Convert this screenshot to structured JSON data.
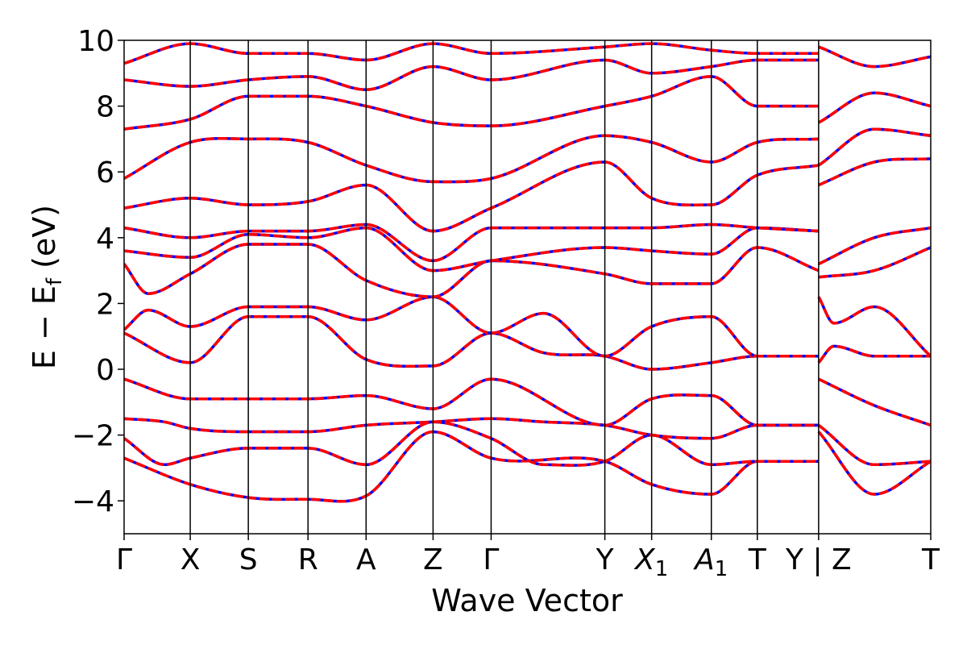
{
  "chart_data": {
    "type": "line",
    "title": "",
    "xlabel": "Wave Vector",
    "ylabel": "E − E",
    "ylabel_subscript": "f",
    "ylabel_unit": " (eV)",
    "ylim": [
      -5,
      10
    ],
    "y_ticks": [
      -4,
      -2,
      0,
      2,
      4,
      6,
      8,
      10
    ],
    "y_tick_labels": [
      "−4",
      "−2",
      "0",
      "2",
      "4",
      "6",
      "8",
      "10"
    ],
    "x_range": [
      0,
      1000
    ],
    "k_points": [
      {
        "label": "Γ",
        "sub": "",
        "italic": false,
        "x": 0
      },
      {
        "label": "X",
        "sub": "",
        "italic": false,
        "x": 82
      },
      {
        "label": "S",
        "sub": "",
        "italic": false,
        "x": 154
      },
      {
        "label": "R",
        "sub": "",
        "italic": false,
        "x": 228
      },
      {
        "label": "A",
        "sub": "",
        "italic": false,
        "x": 300
      },
      {
        "label": "Z",
        "sub": "",
        "italic": false,
        "x": 383
      },
      {
        "label": "Γ",
        "sub": "",
        "italic": false,
        "x": 455
      },
      {
        "label": "Y",
        "sub": "",
        "italic": false,
        "x": 596
      },
      {
        "label": "X",
        "sub": "1",
        "italic": true,
        "x": 654
      },
      {
        "label": "A",
        "sub": "1",
        "italic": true,
        "x": 728
      },
      {
        "label": "T",
        "sub": "",
        "italic": false,
        "x": 785
      },
      {
        "label": "Y | Z",
        "sub": "",
        "italic": false,
        "x": 861
      },
      {
        "label": "T",
        "sub": "",
        "italic": false,
        "x": 1000
      }
    ],
    "grid": false,
    "legend": "none",
    "series_styles": [
      {
        "color": "#0000ff",
        "style": "solid"
      },
      {
        "color": "#ff0000",
        "style": "dashed"
      }
    ],
    "bands": [
      {
        "x": [
          0,
          82,
          154,
          228,
          300,
          383,
          455,
          596,
          654,
          728,
          785,
          861
        ],
        "y": [
          -2.7,
          -3.5,
          -3.9,
          -3.95,
          -3.85,
          -1.9,
          -2.7,
          -2.8,
          -3.5,
          -3.8,
          -2.8,
          -2.8
        ]
      },
      {
        "x": [
          0,
          50,
          82,
          154,
          228,
          300,
          383,
          455,
          520,
          596,
          654,
          728,
          785,
          861
        ],
        "y": [
          -2.1,
          -2.9,
          -2.7,
          -2.4,
          -2.4,
          -2.9,
          -1.6,
          -2.1,
          -2.9,
          -2.8,
          -2.0,
          -2.9,
          -2.8,
          -2.8
        ]
      },
      {
        "x": [
          0,
          50,
          82,
          154,
          228,
          300,
          383,
          455,
          520,
          596,
          654,
          728,
          785,
          861
        ],
        "y": [
          -1.5,
          -1.6,
          -1.8,
          -1.9,
          -1.9,
          -1.7,
          -1.6,
          -1.5,
          -1.6,
          -1.7,
          -2.0,
          -2.1,
          -1.7,
          -1.7
        ]
      },
      {
        "x": [
          0,
          82,
          154,
          228,
          300,
          383,
          455,
          596,
          654,
          728,
          785,
          861
        ],
        "y": [
          -0.3,
          -0.9,
          -0.9,
          -0.9,
          -0.8,
          -1.2,
          -0.3,
          -1.7,
          -0.9,
          -0.8,
          -1.7,
          -1.7
        ]
      },
      {
        "x": [
          0,
          82,
          154,
          228,
          300,
          383,
          455,
          520,
          596,
          654,
          728,
          785,
          861
        ],
        "y": [
          1.1,
          0.2,
          1.6,
          1.6,
          0.3,
          0.1,
          1.1,
          0.5,
          0.4,
          0.0,
          0.2,
          0.4,
          0.4
        ]
      },
      {
        "x": [
          0,
          30,
          82,
          154,
          228,
          300,
          383,
          455,
          520,
          596,
          654,
          728,
          785,
          861
        ],
        "y": [
          1.2,
          1.8,
          1.3,
          1.9,
          1.9,
          1.5,
          2.2,
          1.1,
          1.7,
          0.4,
          1.3,
          1.6,
          0.4,
          0.4
        ]
      },
      {
        "x": [
          0,
          30,
          82,
          154,
          228,
          300,
          383,
          455,
          596,
          654,
          728,
          785,
          861
        ],
        "y": [
          3.2,
          2.3,
          2.9,
          3.8,
          3.8,
          2.7,
          2.2,
          3.3,
          2.9,
          2.6,
          2.6,
          3.7,
          3.0
        ]
      },
      {
        "x": [
          0,
          82,
          154,
          228,
          300,
          383,
          455,
          596,
          654,
          728,
          785,
          861
        ],
        "y": [
          3.6,
          3.4,
          4.1,
          4.0,
          4.3,
          3.0,
          3.3,
          3.7,
          3.6,
          3.5,
          4.3,
          4.2
        ]
      },
      {
        "x": [
          0,
          82,
          154,
          228,
          300,
          383,
          455,
          596,
          654,
          728,
          785,
          861
        ],
        "y": [
          4.3,
          4.0,
          4.2,
          4.2,
          4.4,
          3.3,
          4.3,
          4.3,
          4.3,
          4.4,
          4.3,
          4.2
        ]
      },
      {
        "x": [
          0,
          82,
          154,
          228,
          300,
          383,
          455,
          596,
          654,
          728,
          785,
          861
        ],
        "y": [
          4.9,
          5.2,
          5.0,
          5.1,
          5.6,
          4.2,
          4.9,
          6.3,
          5.2,
          5.0,
          5.9,
          6.2
        ]
      },
      {
        "x": [
          0,
          82,
          154,
          228,
          300,
          383,
          455,
          596,
          654,
          728,
          785,
          861
        ],
        "y": [
          5.8,
          6.9,
          7.0,
          6.9,
          6.2,
          5.7,
          5.8,
          7.1,
          6.9,
          6.3,
          6.9,
          7.0
        ]
      },
      {
        "x": [
          0,
          82,
          154,
          228,
          300,
          383,
          455,
          596,
          654,
          728,
          785,
          861
        ],
        "y": [
          7.3,
          7.6,
          8.3,
          8.3,
          8.0,
          7.5,
          7.4,
          8.0,
          8.3,
          8.9,
          8.0,
          8.0
        ]
      },
      {
        "x": [
          0,
          82,
          154,
          228,
          300,
          383,
          455,
          596,
          654,
          728,
          785,
          861
        ],
        "y": [
          8.8,
          8.6,
          8.8,
          8.9,
          8.5,
          9.2,
          8.8,
          9.4,
          9.0,
          9.2,
          9.4,
          9.4
        ]
      },
      {
        "x": [
          0,
          82,
          154,
          228,
          300,
          383,
          455,
          596,
          654,
          728,
          785,
          861
        ],
        "y": [
          9.3,
          9.9,
          9.6,
          9.6,
          9.4,
          9.9,
          9.6,
          9.8,
          9.9,
          9.7,
          9.6,
          9.6
        ]
      },
      {
        "x": [
          861,
          930,
          1000
        ],
        "y": [
          -1.9,
          -3.8,
          -2.8
        ]
      },
      {
        "x": [
          861,
          930,
          1000
        ],
        "y": [
          -1.7,
          -2.9,
          -2.8
        ]
      },
      {
        "x": [
          861,
          930,
          1000
        ],
        "y": [
          -0.3,
          -1.1,
          -1.7
        ]
      },
      {
        "x": [
          861,
          880,
          930,
          1000
        ],
        "y": [
          0.2,
          0.7,
          0.4,
          0.4
        ]
      },
      {
        "x": [
          861,
          880,
          930,
          1000
        ],
        "y": [
          2.2,
          1.4,
          1.9,
          0.4
        ]
      },
      {
        "x": [
          861,
          930,
          1000
        ],
        "y": [
          2.8,
          3.0,
          3.7
        ]
      },
      {
        "x": [
          861,
          930,
          1000
        ],
        "y": [
          3.2,
          4.0,
          4.3
        ]
      },
      {
        "x": [
          861,
          930,
          1000
        ],
        "y": [
          5.6,
          6.3,
          6.4
        ]
      },
      {
        "x": [
          861,
          930,
          1000
        ],
        "y": [
          6.2,
          7.3,
          7.1
        ]
      },
      {
        "x": [
          861,
          930,
          1000
        ],
        "y": [
          7.5,
          8.4,
          8.0
        ]
      },
      {
        "x": [
          861,
          930,
          1000
        ],
        "y": [
          9.8,
          9.2,
          9.5
        ]
      }
    ]
  }
}
